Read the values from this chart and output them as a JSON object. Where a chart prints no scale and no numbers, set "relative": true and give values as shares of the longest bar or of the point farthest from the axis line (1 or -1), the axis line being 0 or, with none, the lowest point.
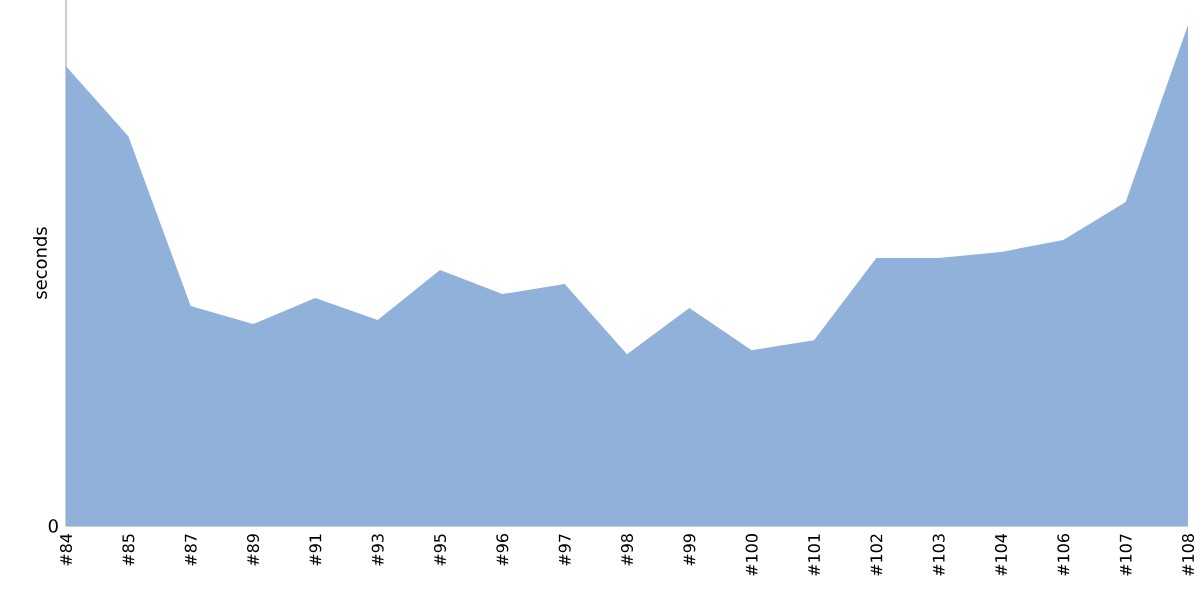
{
  "chart_data": {
    "type": "area",
    "relative": true,
    "ylabel": "seconds",
    "annotations": [
      "0"
    ],
    "categories": [
      "#84",
      "#85",
      "#87",
      "#89",
      "#91",
      "#93",
      "#95",
      "#96",
      "#97",
      "#98",
      "#99",
      "#100",
      "#101",
      "#102",
      "#103",
      "#104",
      "#106",
      "#107",
      "#108"
    ],
    "series": [
      {
        "color": "#8fb1da",
        "values": [
          0.918,
          0.778,
          0.439,
          0.403,
          0.455,
          0.411,
          0.511,
          0.463,
          0.483,
          0.343,
          0.435,
          0.351,
          0.371,
          0.535,
          0.535,
          0.547,
          0.571,
          0.647,
          1
        ]
      }
    ]
  }
}
